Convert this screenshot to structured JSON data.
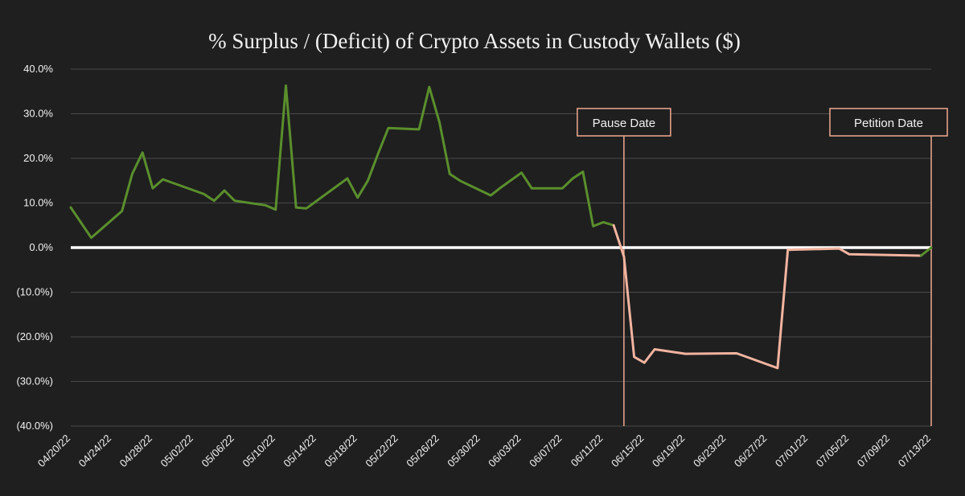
{
  "colors": {
    "background": "#1f1f1f",
    "surplus": "#5a8f2c",
    "deficit": "#f2b4a0",
    "zero_line": "#ffffff",
    "annotation": "#f0a890",
    "grid": "#4a4a4a"
  },
  "chart_data": {
    "type": "line",
    "title": "%  Surplus / (Deficit) of Crypto Assets in Custody Wallets ($)",
    "xlabel": "",
    "ylabel": "",
    "ylim": [
      -40,
      40
    ],
    "grid": "horizontal",
    "y_ticks": [
      {
        "value": 40,
        "label": "40.0%"
      },
      {
        "value": 30,
        "label": "30.0%"
      },
      {
        "value": 20,
        "label": "20.0%"
      },
      {
        "value": 10,
        "label": "10.0%"
      },
      {
        "value": 0,
        "label": "0.0%"
      },
      {
        "value": -10,
        "label": "(10.0%)"
      },
      {
        "value": -20,
        "label": "(20.0%)"
      },
      {
        "value": -30,
        "label": "(30.0%)"
      },
      {
        "value": -40,
        "label": "(40.0%)"
      }
    ],
    "x_ticks": [
      "04/20/22",
      "04/24/22",
      "04/28/22",
      "05/02/22",
      "05/06/22",
      "05/10/22",
      "05/14/22",
      "05/18/22",
      "05/22/22",
      "05/26/22",
      "05/30/22",
      "06/03/22",
      "06/07/22",
      "06/11/22",
      "06/15/22",
      "06/19/22",
      "06/23/22",
      "06/27/22",
      "07/01/22",
      "07/05/22",
      "07/09/22",
      "07/13/22"
    ],
    "x_range": [
      "04/20/22",
      "07/13/22"
    ],
    "surplus_points": [
      [
        "04/20/22",
        9.0
      ],
      [
        "04/22/22",
        2.2
      ],
      [
        "04/25/22",
        8.2
      ],
      [
        "04/26/22",
        16.5
      ],
      [
        "04/27/22",
        21.3
      ],
      [
        "04/28/22",
        13.3
      ],
      [
        "04/29/22",
        15.3
      ],
      [
        "05/03/22",
        12.0
      ],
      [
        "05/04/22",
        10.5
      ],
      [
        "05/05/22",
        12.8
      ],
      [
        "05/06/22",
        10.5
      ],
      [
        "05/09/22",
        9.5
      ],
      [
        "05/10/22",
        8.5
      ],
      [
        "05/11/22",
        36.3
      ],
      [
        "05/12/22",
        9.0
      ],
      [
        "05/13/22",
        8.8
      ],
      [
        "05/17/22",
        15.5
      ],
      [
        "05/18/22",
        11.2
      ],
      [
        "05/19/22",
        15.0
      ],
      [
        "05/20/22",
        21.0
      ],
      [
        "05/21/22",
        26.8
      ],
      [
        "05/24/22",
        26.5
      ],
      [
        "05/25/22",
        36.0
      ],
      [
        "05/26/22",
        28.0
      ],
      [
        "05/27/22",
        16.5
      ],
      [
        "05/28/22",
        15.0
      ],
      [
        "05/31/22",
        11.7
      ],
      [
        "06/01/22",
        13.5
      ],
      [
        "06/03/22",
        16.8
      ],
      [
        "06/04/22",
        13.3
      ],
      [
        "06/07/22",
        13.3
      ],
      [
        "06/08/22",
        15.5
      ],
      [
        "06/09/22",
        17.0
      ],
      [
        "06/10/22",
        4.8
      ],
      [
        "06/11/22",
        5.7
      ],
      [
        "06/12/22",
        5.0
      ]
    ],
    "deficit_points": [
      [
        "06/12/22",
        5.0
      ],
      [
        "06/13/22",
        -2.0
      ],
      [
        "06/14/22",
        -24.5
      ],
      [
        "06/15/22",
        -25.8
      ],
      [
        "06/16/22",
        -22.8
      ],
      [
        "06/19/22",
        -23.8
      ],
      [
        "06/24/22",
        -23.7
      ],
      [
        "06/28/22",
        -27.0
      ],
      [
        "06/29/22",
        -0.5
      ],
      [
        "07/04/22",
        -0.2
      ],
      [
        "07/05/22",
        -1.5
      ],
      [
        "07/12/22",
        -1.8
      ]
    ],
    "tail_points": [
      [
        "07/12/22",
        -1.8
      ],
      [
        "07/13/22",
        0.0
      ]
    ],
    "annotations": [
      {
        "label": "Pause Date",
        "date": "06/13/22"
      },
      {
        "label": "Petition Date",
        "date": "07/13/22"
      }
    ]
  }
}
